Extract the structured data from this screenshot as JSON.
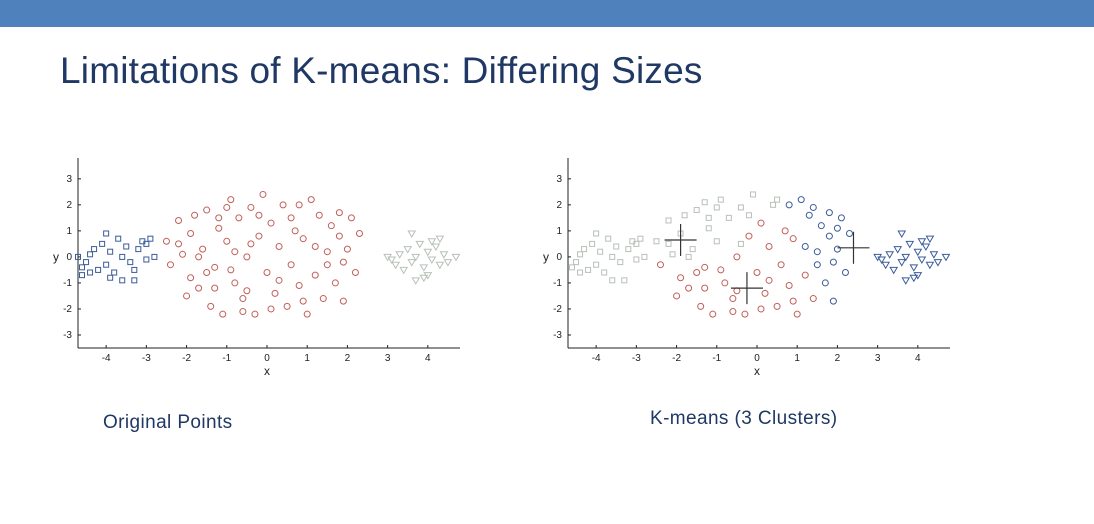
{
  "slide": {
    "title": "Limitations of K-means: Differing Sizes",
    "bar_color": "#4f81bd"
  },
  "colors": {
    "blue": "#3b5b9a",
    "red": "#c0605a",
    "gray": "#b8c0b8",
    "centroid": "#333333"
  },
  "chart_data": [
    {
      "type": "scatter",
      "caption": "Original Points",
      "xlabel": "x",
      "ylabel": "y",
      "xlim": [
        -4.7,
        4.8
      ],
      "ylim": [
        -3.5,
        3.8
      ],
      "xticks": [
        -4,
        -3,
        -2,
        -1,
        0,
        1,
        2,
        3,
        4
      ],
      "yticks": [
        -3,
        -2,
        -1,
        0,
        1,
        2,
        3
      ],
      "grid": false,
      "series": [
        {
          "marker": "square",
          "color": "blue",
          "points": [
            [
              -4.6,
              -0.4
            ],
            [
              -4.5,
              -0.2
            ],
            [
              -4.4,
              0.1
            ],
            [
              -4.4,
              -0.6
            ],
            [
              -4.3,
              0.3
            ],
            [
              -4.2,
              -0.5
            ],
            [
              -4.1,
              0.5
            ],
            [
              -4.0,
              0.9
            ],
            [
              -4.0,
              -0.3
            ],
            [
              -3.9,
              0.2
            ],
            [
              -3.8,
              -0.6
            ],
            [
              -3.7,
              0.7
            ],
            [
              -3.6,
              -0.9
            ],
            [
              -3.6,
              0.0
            ],
            [
              -3.5,
              0.4
            ],
            [
              -3.4,
              -0.2
            ],
            [
              -3.3,
              -0.9
            ],
            [
              -3.2,
              0.3
            ],
            [
              -3.1,
              0.6
            ],
            [
              -3.0,
              -0.1
            ],
            [
              -3.0,
              0.5
            ],
            [
              -2.9,
              0.7
            ],
            [
              -2.8,
              0.0
            ],
            [
              -3.3,
              -0.5
            ],
            [
              -4.6,
              -0.7
            ],
            [
              -4.7,
              0.0
            ],
            [
              -3.9,
              -0.8
            ]
          ]
        },
        {
          "marker": "circle",
          "color": "red",
          "points": [
            [
              -2.5,
              0.6
            ],
            [
              -2.4,
              -0.3
            ],
            [
              -2.2,
              1.4
            ],
            [
              -2.1,
              0.1
            ],
            [
              -2.0,
              -1.5
            ],
            [
              -1.9,
              0.9
            ],
            [
              -1.9,
              -0.8
            ],
            [
              -1.8,
              1.6
            ],
            [
              -1.7,
              -1.2
            ],
            [
              -1.6,
              0.3
            ],
            [
              -1.5,
              1.8
            ],
            [
              -1.4,
              -1.9
            ],
            [
              -1.3,
              -0.4
            ],
            [
              -1.2,
              1.1
            ],
            [
              -1.1,
              -2.2
            ],
            [
              -1.0,
              0.6
            ],
            [
              -0.9,
              2.2
            ],
            [
              -0.8,
              -1.0
            ],
            [
              -0.7,
              1.5
            ],
            [
              -0.6,
              -1.6
            ],
            [
              -0.5,
              0.0
            ],
            [
              -0.4,
              1.9
            ],
            [
              -0.3,
              -2.2
            ],
            [
              -0.2,
              0.8
            ],
            [
              -0.1,
              2.4
            ],
            [
              0.0,
              -0.6
            ],
            [
              0.1,
              1.3
            ],
            [
              0.2,
              -1.4
            ],
            [
              0.3,
              0.4
            ],
            [
              0.4,
              2.0
            ],
            [
              0.5,
              -1.9
            ],
            [
              0.6,
              -0.3
            ],
            [
              0.7,
              1.0
            ],
            [
              0.8,
              -1.1
            ],
            [
              0.9,
              0.7
            ],
            [
              1.0,
              -2.2
            ],
            [
              1.1,
              2.2
            ],
            [
              1.2,
              -0.7
            ],
            [
              1.3,
              1.6
            ],
            [
              1.4,
              -1.6
            ],
            [
              1.5,
              0.2
            ],
            [
              1.6,
              1.2
            ],
            [
              1.7,
              -1.0
            ],
            [
              1.8,
              0.8
            ],
            [
              1.9,
              -1.7
            ],
            [
              2.0,
              0.3
            ],
            [
              2.1,
              1.5
            ],
            [
              2.2,
              -0.6
            ],
            [
              2.3,
              0.9
            ],
            [
              -1.7,
              0.0
            ],
            [
              -1.3,
              -1.2
            ],
            [
              -1.0,
              1.9
            ],
            [
              -0.8,
              0.2
            ],
            [
              -0.5,
              -1.3
            ],
            [
              -0.2,
              1.6
            ],
            [
              0.3,
              -0.9
            ],
            [
              0.6,
              1.5
            ],
            [
              0.9,
              -1.7
            ],
            [
              1.2,
              0.4
            ],
            [
              1.5,
              -0.3
            ],
            [
              1.8,
              1.7
            ],
            [
              -0.4,
              0.5
            ],
            [
              0.1,
              -2.0
            ],
            [
              -1.5,
              -0.6
            ],
            [
              -2.2,
              0.5
            ],
            [
              -0.6,
              -2.1
            ],
            [
              0.8,
              2.0
            ],
            [
              -1.2,
              1.5
            ],
            [
              1.9,
              -0.2
            ],
            [
              -0.9,
              -0.5
            ]
          ]
        },
        {
          "marker": "triangle",
          "color": "gray",
          "points": [
            [
              3.0,
              0.0
            ],
            [
              3.1,
              -0.1
            ],
            [
              3.3,
              0.1
            ],
            [
              3.4,
              -0.5
            ],
            [
              3.5,
              0.3
            ],
            [
              3.6,
              0.9
            ],
            [
              3.6,
              -0.2
            ],
            [
              3.7,
              0.0
            ],
            [
              3.7,
              -0.9
            ],
            [
              3.8,
              0.5
            ],
            [
              3.9,
              -0.4
            ],
            [
              4.0,
              0.2
            ],
            [
              4.0,
              -0.7
            ],
            [
              4.1,
              0.6
            ],
            [
              4.1,
              -0.1
            ],
            [
              4.2,
              0.4
            ],
            [
              4.3,
              -0.3
            ],
            [
              4.4,
              0.1
            ],
            [
              4.5,
              -0.2
            ],
            [
              4.7,
              0.0
            ],
            [
              3.9,
              -0.8
            ],
            [
              3.2,
              -0.3
            ],
            [
              4.3,
              0.7
            ]
          ]
        }
      ]
    },
    {
      "type": "scatter",
      "caption": "K-means (3 Clusters)",
      "xlabel": "x",
      "ylabel": "y",
      "xlim": [
        -4.7,
        4.8
      ],
      "ylim": [
        -3.5,
        3.8
      ],
      "xticks": [
        -4,
        -3,
        -2,
        -1,
        0,
        1,
        2,
        3,
        4
      ],
      "yticks": [
        -3,
        -2,
        -1,
        0,
        1,
        2,
        3
      ],
      "grid": false,
      "series": [
        {
          "marker": "square",
          "color": "gray",
          "points": [
            [
              -4.6,
              -0.4
            ],
            [
              -4.5,
              -0.2
            ],
            [
              -4.4,
              0.1
            ],
            [
              -4.4,
              -0.6
            ],
            [
              -4.3,
              0.3
            ],
            [
              -4.2,
              -0.5
            ],
            [
              -4.1,
              0.5
            ],
            [
              -4.0,
              0.9
            ],
            [
              -4.0,
              -0.3
            ],
            [
              -3.9,
              0.2
            ],
            [
              -3.8,
              -0.6
            ],
            [
              -3.7,
              0.7
            ],
            [
              -3.6,
              -0.9
            ],
            [
              -3.6,
              0.0
            ],
            [
              -3.5,
              0.4
            ],
            [
              -3.4,
              -0.2
            ],
            [
              -3.3,
              -0.9
            ],
            [
              -3.2,
              0.3
            ],
            [
              -3.1,
              0.6
            ],
            [
              -3.0,
              -0.1
            ],
            [
              -3.0,
              0.5
            ],
            [
              -2.9,
              0.7
            ],
            [
              -2.8,
              0.0
            ],
            [
              -2.5,
              0.6
            ],
            [
              -2.2,
              1.4
            ],
            [
              -2.2,
              0.5
            ],
            [
              -1.9,
              0.9
            ],
            [
              -1.8,
              1.6
            ],
            [
              -1.6,
              0.3
            ],
            [
              -1.5,
              1.8
            ],
            [
              -1.2,
              1.1
            ],
            [
              -1.2,
              1.5
            ],
            [
              -1.0,
              0.6
            ],
            [
              -1.0,
              1.9
            ],
            [
              -0.9,
              2.2
            ],
            [
              -0.7,
              1.5
            ],
            [
              -0.4,
              1.9
            ],
            [
              -0.2,
              1.6
            ],
            [
              -0.1,
              2.4
            ],
            [
              0.4,
              2.0
            ],
            [
              0.5,
              2.2
            ],
            [
              -1.7,
              0.0
            ],
            [
              -0.4,
              0.5
            ],
            [
              -2.1,
              0.1
            ],
            [
              -1.3,
              2.1
            ]
          ]
        },
        {
          "marker": "circle",
          "color": "red",
          "points": [
            [
              -2.4,
              -0.3
            ],
            [
              -2.0,
              -1.5
            ],
            [
              -1.9,
              -0.8
            ],
            [
              -1.7,
              -1.2
            ],
            [
              -1.4,
              -1.9
            ],
            [
              -1.3,
              -0.4
            ],
            [
              -1.1,
              -2.2
            ],
            [
              -0.8,
              -1.0
            ],
            [
              -0.6,
              -1.6
            ],
            [
              -0.5,
              0.0
            ],
            [
              -0.3,
              -2.2
            ],
            [
              0.0,
              -0.6
            ],
            [
              0.2,
              -1.4
            ],
            [
              0.3,
              0.4
            ],
            [
              0.5,
              -1.9
            ],
            [
              0.6,
              -0.3
            ],
            [
              0.8,
              -1.1
            ],
            [
              1.0,
              -2.2
            ],
            [
              1.2,
              -0.7
            ],
            [
              1.4,
              -1.6
            ],
            [
              -1.3,
              -1.2
            ],
            [
              -0.5,
              -1.3
            ],
            [
              0.3,
              -0.9
            ],
            [
              0.9,
              -1.7
            ],
            [
              0.1,
              -2.0
            ],
            [
              -1.5,
              -0.6
            ],
            [
              -0.6,
              -2.1
            ],
            [
              -0.9,
              -0.5
            ],
            [
              -0.2,
              0.8
            ],
            [
              0.1,
              1.3
            ],
            [
              0.7,
              1.0
            ],
            [
              0.9,
              0.7
            ]
          ]
        },
        {
          "marker": "circle",
          "color": "blue",
          "points": [
            [
              1.1,
              2.2
            ],
            [
              1.3,
              1.6
            ],
            [
              1.5,
              0.2
            ],
            [
              1.6,
              1.2
            ],
            [
              1.7,
              -1.0
            ],
            [
              1.8,
              0.8
            ],
            [
              1.9,
              -1.7
            ],
            [
              2.0,
              0.3
            ],
            [
              2.1,
              1.5
            ],
            [
              2.2,
              -0.6
            ],
            [
              2.3,
              0.9
            ],
            [
              1.2,
              0.4
            ],
            [
              1.5,
              -0.3
            ],
            [
              1.8,
              1.7
            ],
            [
              0.8,
              2.0
            ],
            [
              1.9,
              -0.2
            ],
            [
              1.4,
              1.9
            ],
            [
              2.0,
              1.1
            ]
          ]
        },
        {
          "marker": "triangle",
          "color": "blue",
          "points": [
            [
              3.0,
              0.0
            ],
            [
              3.1,
              -0.1
            ],
            [
              3.3,
              0.1
            ],
            [
              3.4,
              -0.5
            ],
            [
              3.5,
              0.3
            ],
            [
              3.6,
              0.9
            ],
            [
              3.6,
              -0.2
            ],
            [
              3.7,
              0.0
            ],
            [
              3.7,
              -0.9
            ],
            [
              3.8,
              0.5
            ],
            [
              3.9,
              -0.4
            ],
            [
              4.0,
              0.2
            ],
            [
              4.0,
              -0.7
            ],
            [
              4.1,
              0.6
            ],
            [
              4.1,
              -0.1
            ],
            [
              4.2,
              0.4
            ],
            [
              4.3,
              -0.3
            ],
            [
              4.4,
              0.1
            ],
            [
              4.5,
              -0.2
            ],
            [
              4.7,
              0.0
            ],
            [
              3.9,
              -0.8
            ],
            [
              3.2,
              -0.3
            ],
            [
              4.3,
              0.7
            ]
          ]
        }
      ],
      "centroids": [
        [
          -1.9,
          0.65
        ],
        [
          -0.25,
          -1.2
        ],
        [
          2.4,
          0.35
        ]
      ]
    }
  ]
}
